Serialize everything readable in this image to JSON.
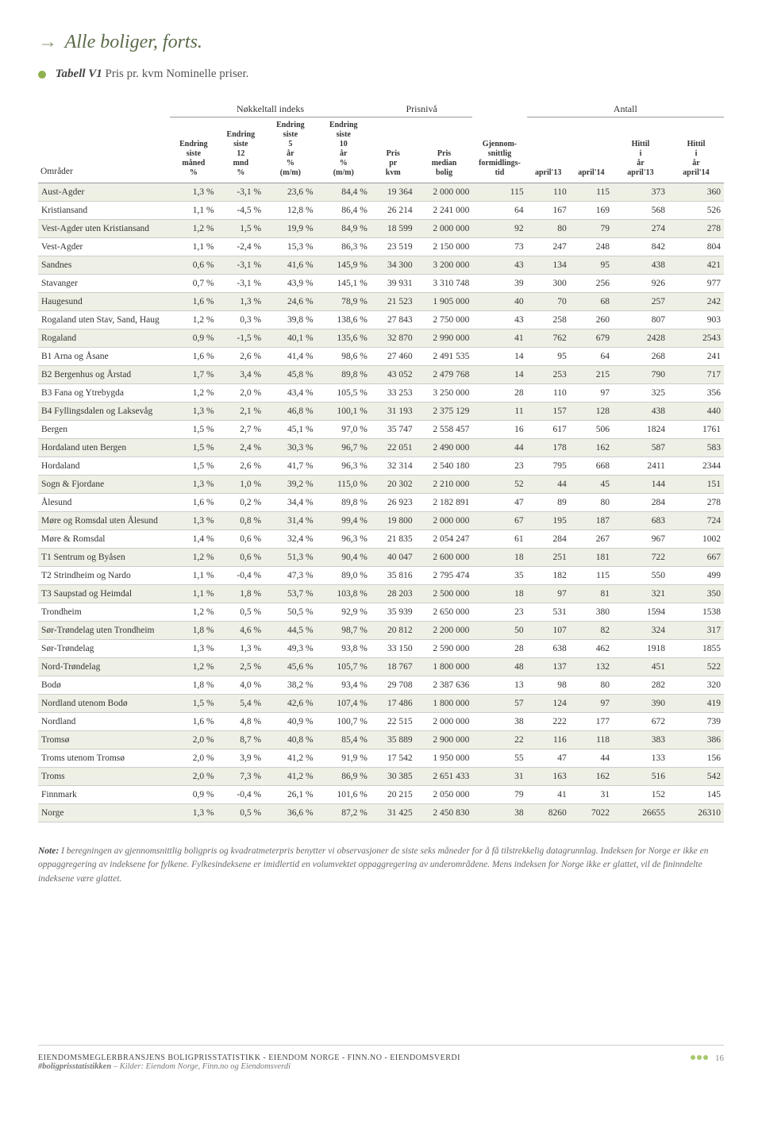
{
  "heading": "Alle boliger, forts.",
  "table_label": "Tabell V1",
  "table_desc": "Pris pr. kvm Nominelle priser.",
  "groups": [
    "Nøkkeltall indeks",
    "Prisnivå",
    "",
    "Antall"
  ],
  "columns": [
    "Områder",
    "Endring siste måned %",
    "Endring siste 12 mnd %",
    "Endring siste 5 år % (m/m)",
    "Endring siste 10 år % (m/m)",
    "Pris pr kvm",
    "Pris median bolig",
    "Gjennom- snittlig formidlings- tid",
    "april'13",
    "april'14",
    "Hittil i år april'13",
    "Hittil i år april'14"
  ],
  "col_widths": [
    "19%",
    "6.8%",
    "6.8%",
    "7.5%",
    "7.8%",
    "6.5%",
    "8.2%",
    "7.8%",
    "6.2%",
    "6.2%",
    "8%",
    "8%"
  ],
  "shade_rows": [
    0,
    2,
    4,
    6,
    8,
    10,
    12,
    14,
    16,
    18,
    20,
    22,
    24,
    26,
    28,
    30,
    32,
    34
  ],
  "rows": [
    [
      "Aust-Agder",
      "1,3 %",
      "-3,1 %",
      "23,6 %",
      "84,4 %",
      "19 364",
      "2 000 000",
      "115",
      "110",
      "115",
      "373",
      "360"
    ],
    [
      "Kristiansand",
      "1,1 %",
      "-4,5 %",
      "12,8 %",
      "86,4 %",
      "26 214",
      "2 241 000",
      "64",
      "167",
      "169",
      "568",
      "526"
    ],
    [
      "Vest-Agder uten Kristiansand",
      "1,2 %",
      "1,5 %",
      "19,9 %",
      "84,9 %",
      "18 599",
      "2 000 000",
      "92",
      "80",
      "79",
      "274",
      "278"
    ],
    [
      "Vest-Agder",
      "1,1 %",
      "-2,4 %",
      "15,3 %",
      "86,3 %",
      "23 519",
      "2 150 000",
      "73",
      "247",
      "248",
      "842",
      "804"
    ],
    [
      "Sandnes",
      "0,6 %",
      "-3,1 %",
      "41,6 %",
      "145,9 %",
      "34 300",
      "3 200 000",
      "43",
      "134",
      "95",
      "438",
      "421"
    ],
    [
      "Stavanger",
      "0,7 %",
      "-3,1 %",
      "43,9 %",
      "145,1 %",
      "39 931",
      "3 310 748",
      "39",
      "300",
      "256",
      "926",
      "977"
    ],
    [
      "Haugesund",
      "1,6 %",
      "1,3 %",
      "24,6 %",
      "78,9 %",
      "21 523",
      "1 905 000",
      "40",
      "70",
      "68",
      "257",
      "242"
    ],
    [
      "Rogaland uten Stav, Sand, Haug",
      "1,2 %",
      "0,3 %",
      "39,8 %",
      "138,6 %",
      "27 843",
      "2 750 000",
      "43",
      "258",
      "260",
      "807",
      "903"
    ],
    [
      "Rogaland",
      "0,9 %",
      "-1,5 %",
      "40,1 %",
      "135,6 %",
      "32 870",
      "2 990 000",
      "41",
      "762",
      "679",
      "2428",
      "2543"
    ],
    [
      "B1 Arna og Åsane",
      "1,6 %",
      "2,6 %",
      "41,4 %",
      "98,6 %",
      "27 460",
      "2 491 535",
      "14",
      "95",
      "64",
      "268",
      "241"
    ],
    [
      "B2 Bergenhus og Årstad",
      "1,7 %",
      "3,4 %",
      "45,8 %",
      "89,8 %",
      "43 052",
      "2 479 768",
      "14",
      "253",
      "215",
      "790",
      "717"
    ],
    [
      "B3 Fana og Ytrebygda",
      "1,2 %",
      "2,0 %",
      "43,4 %",
      "105,5 %",
      "33 253",
      "3 250 000",
      "28",
      "110",
      "97",
      "325",
      "356"
    ],
    [
      "B4 Fyllingsdalen og Laksevåg",
      "1,3 %",
      "2,1 %",
      "46,8 %",
      "100,1 %",
      "31 193",
      "2 375 129",
      "11",
      "157",
      "128",
      "438",
      "440"
    ],
    [
      "Bergen",
      "1,5 %",
      "2,7 %",
      "45,1 %",
      "97,0 %",
      "35 747",
      "2 558 457",
      "16",
      "617",
      "506",
      "1824",
      "1761"
    ],
    [
      "Hordaland uten Bergen",
      "1,5 %",
      "2,4 %",
      "30,3 %",
      "96,7 %",
      "22 051",
      "2 490 000",
      "44",
      "178",
      "162",
      "587",
      "583"
    ],
    [
      "Hordaland",
      "1,5 %",
      "2,6 %",
      "41,7 %",
      "96,3 %",
      "32 314",
      "2 540 180",
      "23",
      "795",
      "668",
      "2411",
      "2344"
    ],
    [
      "Sogn & Fjordane",
      "1,3 %",
      "1,0 %",
      "39,2 %",
      "115,0 %",
      "20 302",
      "2 210 000",
      "52",
      "44",
      "45",
      "144",
      "151"
    ],
    [
      "Ålesund",
      "1,6 %",
      "0,2 %",
      "34,4 %",
      "89,8 %",
      "26 923",
      "2 182 891",
      "47",
      "89",
      "80",
      "284",
      "278"
    ],
    [
      "Møre og Romsdal uten Ålesund",
      "1,3 %",
      "0,8 %",
      "31,4 %",
      "99,4 %",
      "19 800",
      "2 000 000",
      "67",
      "195",
      "187",
      "683",
      "724"
    ],
    [
      "Møre & Romsdal",
      "1,4 %",
      "0,6 %",
      "32,4 %",
      "96,3 %",
      "21 835",
      "2 054 247",
      "61",
      "284",
      "267",
      "967",
      "1002"
    ],
    [
      "T1 Sentrum og Byåsen",
      "1,2 %",
      "0,6 %",
      "51,3 %",
      "90,4 %",
      "40 047",
      "2 600 000",
      "18",
      "251",
      "181",
      "722",
      "667"
    ],
    [
      "T2 Strindheim og Nardo",
      "1,1 %",
      "-0,4 %",
      "47,3 %",
      "89,0 %",
      "35 816",
      "2 795 474",
      "35",
      "182",
      "115",
      "550",
      "499"
    ],
    [
      "T3 Saupstad og Heimdal",
      "1,1 %",
      "1,8 %",
      "53,7 %",
      "103,8 %",
      "28 203",
      "2 500 000",
      "18",
      "97",
      "81",
      "321",
      "350"
    ],
    [
      "Trondheim",
      "1,2 %",
      "0,5 %",
      "50,5 %",
      "92,9 %",
      "35 939",
      "2 650 000",
      "23",
      "531",
      "380",
      "1594",
      "1538"
    ],
    [
      "Sør-Trøndelag uten Trondheim",
      "1,8 %",
      "4,6 %",
      "44,5 %",
      "98,7 %",
      "20 812",
      "2 200 000",
      "50",
      "107",
      "82",
      "324",
      "317"
    ],
    [
      "Sør-Trøndelag",
      "1,3 %",
      "1,3 %",
      "49,3 %",
      "93,8 %",
      "33 150",
      "2 590 000",
      "28",
      "638",
      "462",
      "1918",
      "1855"
    ],
    [
      "Nord-Trøndelag",
      "1,2 %",
      "2,5 %",
      "45,6 %",
      "105,7 %",
      "18 767",
      "1 800 000",
      "48",
      "137",
      "132",
      "451",
      "522"
    ],
    [
      "Bodø",
      "1,8 %",
      "4,0 %",
      "38,2 %",
      "93,4 %",
      "29 708",
      "2 387 636",
      "13",
      "98",
      "80",
      "282",
      "320"
    ],
    [
      "Nordland utenom Bodø",
      "1,5 %",
      "5,4 %",
      "42,6 %",
      "107,4 %",
      "17 486",
      "1 800 000",
      "57",
      "124",
      "97",
      "390",
      "419"
    ],
    [
      "Nordland",
      "1,6 %",
      "4,8 %",
      "40,9 %",
      "100,7 %",
      "22 515",
      "2 000 000",
      "38",
      "222",
      "177",
      "672",
      "739"
    ],
    [
      "Tromsø",
      "2,0 %",
      "8,7 %",
      "40,8 %",
      "85,4 %",
      "35 889",
      "2 900 000",
      "22",
      "116",
      "118",
      "383",
      "386"
    ],
    [
      "Troms utenom Tromsø",
      "2,0 %",
      "3,9 %",
      "41,2 %",
      "91,9 %",
      "17 542",
      "1 950 000",
      "55",
      "47",
      "44",
      "133",
      "156"
    ],
    [
      "Troms",
      "2,0 %",
      "7,3 %",
      "41,2 %",
      "86,9 %",
      "30 385",
      "2 651 433",
      "31",
      "163",
      "162",
      "516",
      "542"
    ],
    [
      "Finnmark",
      "0,9 %",
      "-0,4 %",
      "26,1 %",
      "101,6 %",
      "20 215",
      "2 050 000",
      "79",
      "41",
      "31",
      "152",
      "145"
    ],
    [
      "Norge",
      "1,3 %",
      "0,5 %",
      "36,6 %",
      "87,2 %",
      "31 425",
      "2 450 830",
      "38",
      "8260",
      "7022",
      "26655",
      "26310"
    ]
  ],
  "note_label": "Note:",
  "note_text": "I beregningen av gjennomsnittlig boligpris og kvadratmeterpris benytter vi observasjoner de siste seks måneder for å få tilstrekkelig datagrunnlag. Indeksen for Norge er ikke en oppaggregering av indeksene for fylkene. Fylkesindeksene er imidlertid en volumvektet oppaggregering av underområdene. Mens indeksen for Norge ikke er glattet, vil de fininndelte indeksene være glattet.",
  "footer_line1": "EIENDOMSMEGLERBRANSJENS BOLIGPRISSTATISTIKK - EIENDOM NORGE - FINN.NO - EIENDOMSVERDI",
  "footer_line2_label": "#boligprisstatistikken",
  "footer_line2_rest": " – Kilder: Eiendom Norge, Finn.no og Eiendomsverdi",
  "page_num": "16"
}
